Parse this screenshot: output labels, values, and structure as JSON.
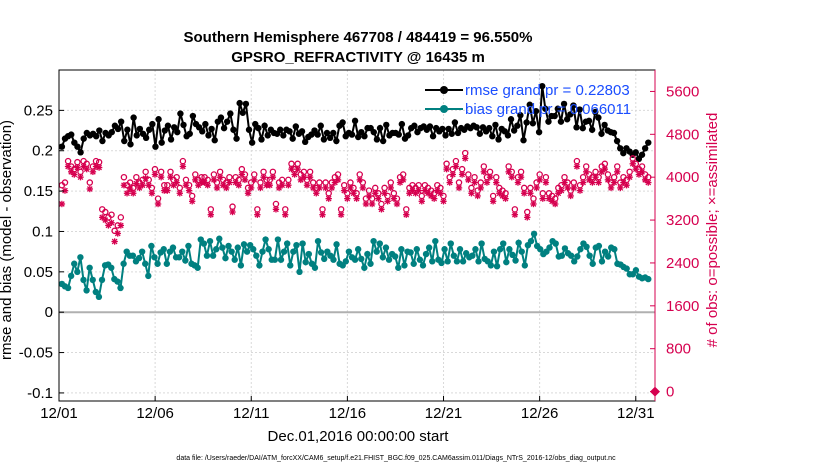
{
  "chart_data": {
    "type": "line",
    "title": "Southern Hemisphere 467708 / 484419 = 96.550%",
    "subtitle": "GPSRO_REFRACTIVITY @ 16435 m",
    "xlabel": "Dec.01,2016 00:00:00 start",
    "ylabel": "rmse and bias (model - observation)",
    "ylabel_right": "# of obs: o=possible; ×=assimilated",
    "footnote": "data file: /Users/raeder/DAI/ATM_forcXX/CAM6_setup/f.e21.FHIST_BGC.f09_025.CAM6assim.011/Diags_NTrS_2016-12/obs_diag_output.nc",
    "x_tick_labels": [
      "12/01",
      "12/06",
      "12/11",
      "12/16",
      "12/21",
      "12/26",
      "12/31"
    ],
    "x_tick_days": [
      0,
      5,
      10,
      15,
      20,
      25,
      30
    ],
    "xlim_days": [
      0,
      31
    ],
    "ylim": [
      -0.11,
      0.3
    ],
    "y_ticks": [
      -0.1,
      -0.05,
      0,
      0.05,
      0.1,
      0.15,
      0.2,
      0.25
    ],
    "y_tick_labels": [
      "-0.1",
      "-0.05",
      "0",
      "0.05",
      "0.1",
      "0.15",
      "0.2",
      "0.25"
    ],
    "ylim_right": [
      -176,
      6000
    ],
    "y_ticks_right": [
      0,
      800,
      1600,
      2400,
      3200,
      4000,
      4800,
      5600
    ],
    "y_tick_labels_right": [
      "0",
      "800",
      "1600",
      "2400",
      "3200",
      "4000",
      "4800",
      "5600"
    ],
    "grid": true,
    "legend_position": "top-right",
    "colors": {
      "rmse": "#000000",
      "bias": "#008080",
      "obs": "#d6004f",
      "legend_text": "#1a4dff",
      "zero_line": "#b0b0b0"
    },
    "series": [
      {
        "name": "rmse grand pr = 0.22803",
        "axis": "left",
        "marker": "filled-circle",
        "values": [
          0.205,
          0.215,
          0.218,
          0.22,
          0.21,
          0.205,
          0.198,
          0.215,
          0.222,
          0.219,
          0.221,
          0.218,
          0.225,
          0.212,
          0.222,
          0.219,
          0.223,
          0.231,
          0.227,
          0.236,
          0.212,
          0.226,
          0.208,
          0.241,
          0.219,
          0.227,
          0.221,
          0.216,
          0.226,
          0.233,
          0.205,
          0.239,
          0.21,
          0.225,
          0.231,
          0.214,
          0.229,
          0.223,
          0.246,
          0.232,
          0.218,
          0.221,
          0.243,
          0.233,
          0.229,
          0.224,
          0.233,
          0.219,
          0.227,
          0.213,
          0.236,
          0.241,
          0.228,
          0.236,
          0.246,
          0.226,
          0.215,
          0.259,
          0.247,
          0.258,
          0.226,
          0.21,
          0.233,
          0.228,
          0.214,
          0.231,
          0.219,
          0.226,
          0.222,
          0.221,
          0.226,
          0.219,
          0.226,
          0.224,
          0.215,
          0.23,
          0.221,
          0.224,
          0.211,
          0.217,
          0.22,
          0.225,
          0.22,
          0.231,
          0.214,
          0.222,
          0.216,
          0.222,
          0.212,
          0.231,
          0.235,
          0.218,
          0.222,
          0.22,
          0.237,
          0.217,
          0.223,
          0.218,
          0.228,
          0.228,
          0.223,
          0.214,
          0.228,
          0.212,
          0.232,
          0.219,
          0.222,
          0.222,
          0.22,
          0.233,
          0.215,
          0.219,
          0.228,
          0.231,
          0.223,
          0.228,
          0.23,
          0.226,
          0.23,
          0.218,
          0.228,
          0.224,
          0.227,
          0.219,
          0.227,
          0.221,
          0.235,
          0.222,
          0.228,
          0.226,
          0.23,
          0.228,
          0.231,
          0.229,
          0.221,
          0.229,
          0.224,
          0.228,
          0.218,
          0.232,
          0.214,
          0.227,
          0.224,
          0.219,
          0.239,
          0.225,
          0.231,
          0.244,
          0.213,
          0.235,
          0.257,
          0.234,
          0.249,
          0.223,
          0.28,
          0.252,
          0.236,
          0.243,
          0.243,
          0.252,
          0.236,
          0.258,
          0.239,
          0.245,
          0.256,
          0.229,
          0.251,
          0.228,
          0.236,
          0.237,
          0.226,
          0.248,
          0.241,
          0.221,
          0.232,
          0.225,
          0.223,
          0.222,
          0.212,
          0.203,
          0.197,
          0.203,
          0.199,
          0.195,
          0.198,
          0.19,
          0.195,
          0.203,
          0.21
        ]
      },
      {
        "name": "bias grand pr = 0.066011",
        "axis": "left",
        "marker": "filled-circle",
        "values": [
          0.035,
          0.032,
          0.03,
          0.045,
          0.06,
          0.05,
          0.068,
          0.04,
          0.027,
          0.055,
          0.04,
          0.025,
          0.019,
          0.04,
          0.058,
          0.059,
          0.055,
          0.041,
          0.038,
          0.03,
          0.06,
          0.075,
          0.07,
          0.07,
          0.063,
          0.067,
          0.075,
          0.06,
          0.045,
          0.082,
          0.068,
          0.06,
          0.074,
          0.078,
          0.06,
          0.075,
          0.08,
          0.068,
          0.068,
          0.075,
          0.064,
          0.082,
          0.06,
          0.058,
          0.055,
          0.09,
          0.085,
          0.07,
          0.088,
          0.07,
          0.078,
          0.091,
          0.08,
          0.067,
          0.082,
          0.075,
          0.065,
          0.08,
          0.058,
          0.084,
          0.075,
          0.083,
          0.078,
          0.07,
          0.058,
          0.075,
          0.09,
          0.078,
          0.065,
          0.065,
          0.09,
          0.065,
          0.075,
          0.085,
          0.058,
          0.075,
          0.083,
          0.05,
          0.085,
          0.062,
          0.072,
          0.06,
          0.055,
          0.088,
          0.074,
          0.066,
          0.075,
          0.07,
          0.065,
          0.084,
          0.06,
          0.058,
          0.063,
          0.075,
          0.068,
          0.065,
          0.078,
          0.066,
          0.055,
          0.072,
          0.06,
          0.088,
          0.075,
          0.085,
          0.068,
          0.08,
          0.065,
          0.072,
          0.069,
          0.055,
          0.078,
          0.058,
          0.075,
          0.074,
          0.06,
          0.078,
          0.065,
          0.058,
          0.072,
          0.08,
          0.063,
          0.088,
          0.065,
          0.061,
          0.078,
          0.063,
          0.085,
          0.07,
          0.063,
          0.078,
          0.063,
          0.073,
          0.068,
          0.07,
          0.078,
          0.063,
          0.085,
          0.066,
          0.063,
          0.058,
          0.075,
          0.057,
          0.078,
          0.085,
          0.062,
          0.078,
          0.071,
          0.064,
          0.086,
          0.075,
          0.058,
          0.083,
          0.088,
          0.097,
          0.082,
          0.078,
          0.072,
          0.075,
          0.08,
          0.088,
          0.085,
          0.069,
          0.07,
          0.079,
          0.073,
          0.07,
          0.063,
          0.069,
          0.078,
          0.085,
          0.081,
          0.07,
          0.06,
          0.08,
          0.082,
          0.063,
          0.075,
          0.069,
          0.08,
          0.078,
          0.06,
          0.059,
          0.056,
          0.054,
          0.047,
          0.047,
          0.052,
          0.044,
          0.042,
          0.043,
          0.041
        ]
      },
      {
        "name": "obs possible",
        "axis": "right",
        "marker": "open-circle",
        "values": [
          3850,
          3900,
          4300,
          4200,
          4150,
          4280,
          4100,
          4300,
          4250,
          3900,
          4200,
          4300,
          4280,
          3400,
          3350,
          3250,
          3300,
          3000,
          3100,
          3250,
          4000,
          3850,
          3900,
          3800,
          4000,
          3900,
          3950,
          4100,
          3950,
          3800,
          4150,
          3600,
          4100,
          3850,
          3850,
          4100,
          3950,
          4000,
          3800,
          4300,
          3950,
          3850,
          3650,
          4050,
          3950,
          4000,
          4000,
          3950,
          3400,
          4050,
          3900,
          4100,
          3950,
          3900,
          4000,
          3450,
          4000,
          3950,
          4150,
          4050,
          3800,
          3900,
          4050,
          3400,
          3900,
          4100,
          3950,
          3950,
          4100,
          3500,
          3900,
          3950,
          3400,
          3950,
          4250,
          4150,
          4250,
          4050,
          4100,
          3950,
          4100,
          3900,
          3800,
          3900,
          3400,
          3900,
          3700,
          3900,
          4000,
          4050,
          3400,
          3850,
          3700,
          3900,
          3800,
          3700,
          4050,
          3900,
          3600,
          3750,
          3600,
          3800,
          3700,
          3500,
          3800,
          3650,
          3900,
          3700,
          3600,
          4000,
          4050,
          3400,
          3800,
          3850,
          3800,
          3850,
          3650,
          3850,
          3800,
          3750,
          3700,
          3850,
          3800,
          3650,
          4250,
          4000,
          4150,
          4300,
          3900,
          4150,
          4450,
          4050,
          3800,
          4000,
          3750,
          3900,
          4200,
          4000,
          4100,
          3650,
          4000,
          3800,
          3750,
          3700,
          4200,
          4100,
          3400,
          4000,
          4100,
          3800,
          3350,
          3800,
          3600,
          3900,
          4050,
          3700,
          4000,
          3700,
          3650,
          3600,
          3800,
          3850,
          4000,
          3900,
          3750,
          3900,
          4300,
          3850,
          4000,
          4200,
          4050,
          4000,
          4100,
          4000,
          4200,
          4250,
          4050,
          3900,
          4000,
          4200,
          3900,
          4000,
          3950,
          4100,
          4350,
          4250,
          4150,
          4200,
          4050,
          4000
        ]
      },
      {
        "name": "obs assimilated",
        "axis": "right",
        "marker": "asterisk",
        "values": [
          3500,
          3750,
          4200,
          4100,
          4050,
          4180,
          4000,
          4200,
          4150,
          3780,
          4100,
          4200,
          4180,
          3250,
          3200,
          3100,
          3150,
          2800,
          2950,
          3100,
          3850,
          3700,
          3780,
          3700,
          3880,
          3800,
          3850,
          3980,
          3850,
          3700,
          4050,
          3500,
          4000,
          3750,
          3750,
          4000,
          3850,
          3900,
          3700,
          4200,
          3850,
          3750,
          3550,
          3950,
          3850,
          3900,
          3900,
          3850,
          3300,
          3950,
          3800,
          4000,
          3850,
          3800,
          3900,
          3350,
          3900,
          3850,
          4050,
          3950,
          3700,
          3800,
          3950,
          3300,
          3800,
          4000,
          3850,
          3850,
          4000,
          3400,
          3800,
          3850,
          3300,
          3850,
          4150,
          4050,
          4150,
          3950,
          4000,
          3850,
          4000,
          3800,
          3700,
          3800,
          3300,
          3800,
          3600,
          3800,
          3900,
          3950,
          3300,
          3750,
          3600,
          3800,
          3700,
          3600,
          3950,
          3800,
          3500,
          3650,
          3500,
          3700,
          3600,
          3400,
          3700,
          3550,
          3800,
          3600,
          3500,
          3900,
          3950,
          3300,
          3700,
          3750,
          3700,
          3750,
          3550,
          3750,
          3700,
          3650,
          3600,
          3750,
          3700,
          3550,
          4150,
          3900,
          4050,
          4200,
          3800,
          4050,
          4350,
          3950,
          3700,
          3900,
          3650,
          3800,
          4100,
          3900,
          4000,
          3550,
          3900,
          3700,
          3650,
          3600,
          4100,
          4000,
          3300,
          3900,
          4000,
          3700,
          3250,
          3700,
          3500,
          3800,
          3950,
          3600,
          3900,
          3600,
          3550,
          3500,
          3700,
          3750,
          3900,
          3800,
          3650,
          3800,
          4200,
          3750,
          3900,
          4100,
          3950,
          3900,
          4000,
          3900,
          4100,
          4150,
          3950,
          3800,
          3900,
          4100,
          3800,
          3900,
          3850,
          4000,
          4250,
          4150,
          4050,
          4100,
          3950,
          3900
        ]
      }
    ],
    "final_obs_marker_value": 0
  }
}
